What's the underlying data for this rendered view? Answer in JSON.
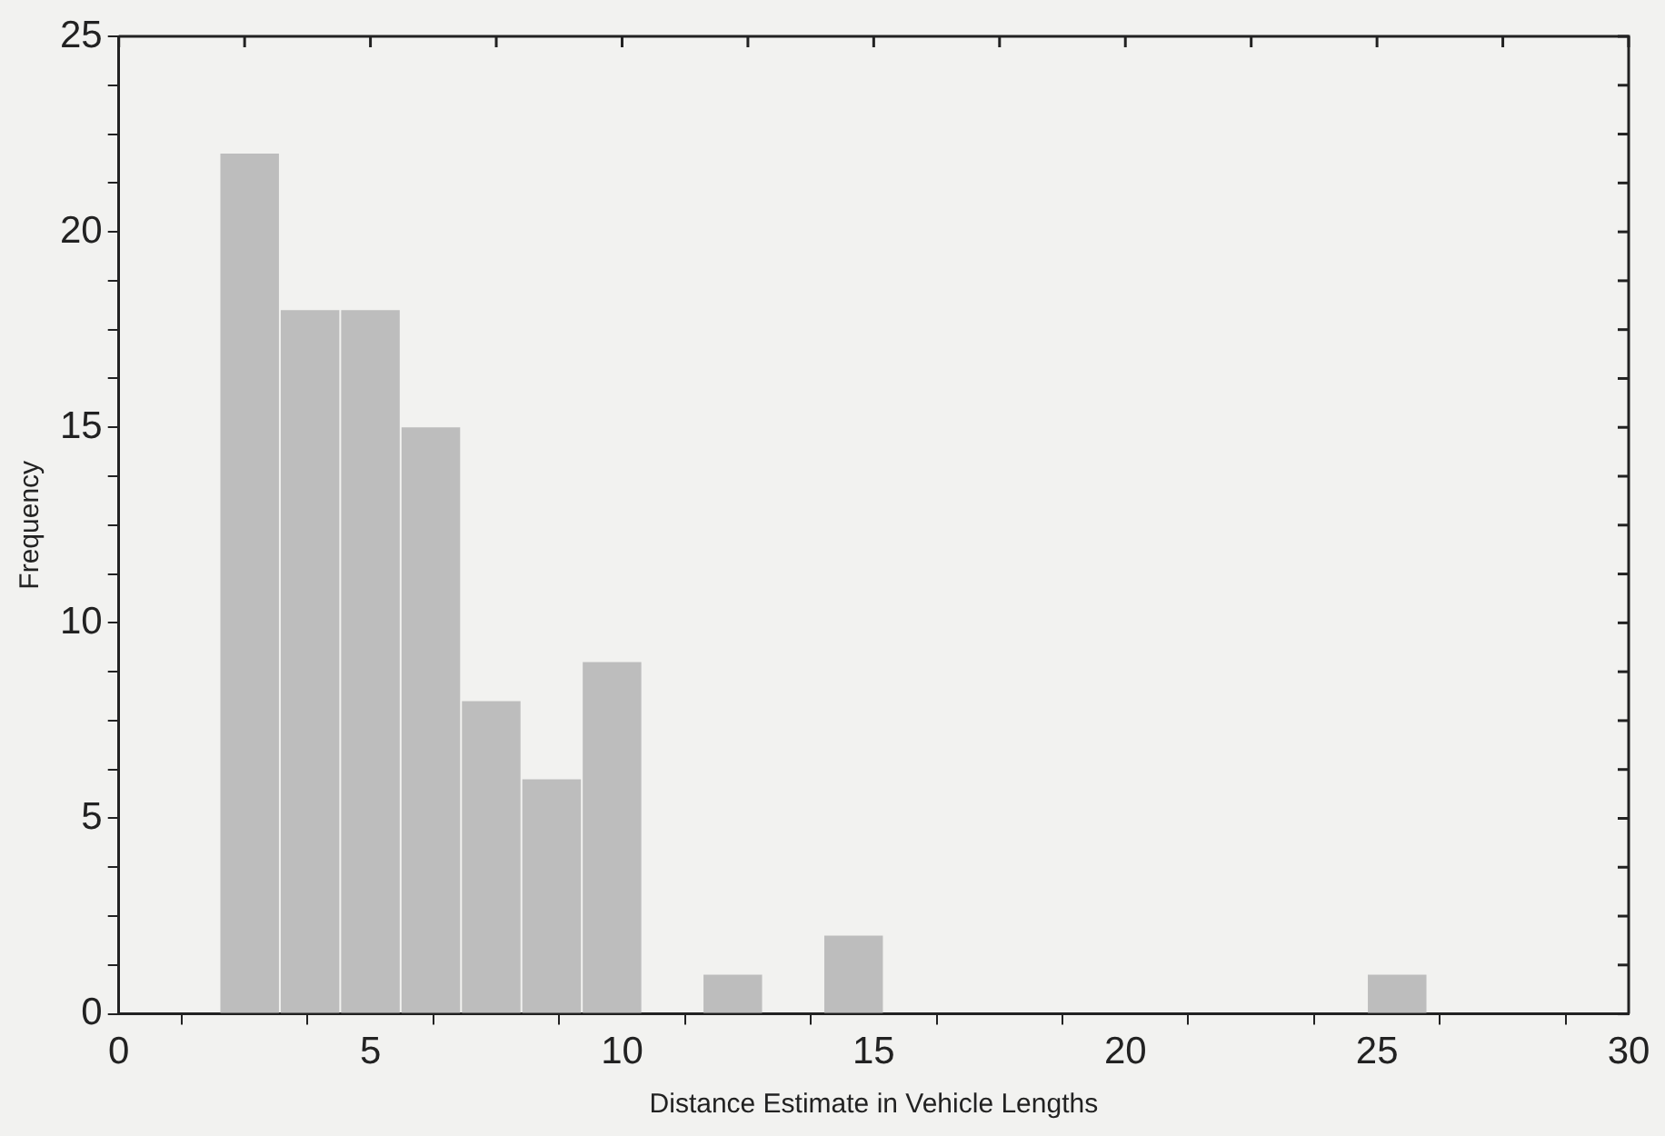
{
  "chart_data": {
    "type": "histogram",
    "xlabel": "Distance Estimate in Vehicle Lengths",
    "ylabel": "Frequency",
    "bins": [
      2,
      3.2,
      4.4,
      5.6,
      6.8,
      8,
      9.2,
      10.4,
      11.6,
      12.8,
      14,
      15.2,
      16.4,
      17.6,
      18.8,
      20,
      21.2,
      22.4,
      23.6,
      24.8,
      26
    ],
    "values": [
      22,
      18,
      18,
      15,
      8,
      6,
      9,
      0,
      1,
      0,
      2,
      0,
      0,
      0,
      0,
      0,
      0,
      0,
      0,
      1
    ],
    "color": "#bdbdbd",
    "xlim": [
      0,
      30
    ],
    "xticks": [
      0,
      {
        "value": 2.5,
        "label": null
      },
      5,
      {
        "value": 7.5,
        "label": null
      },
      10,
      {
        "value": 12.5,
        "label": null
      },
      15,
      {
        "value": 17.5,
        "label": null
      },
      20,
      {
        "value": 22.5,
        "label": null
      },
      25,
      {
        "value": 27.5,
        "label": null
      },
      30
    ],
    "ylim": [
      0,
      25
    ],
    "yticks": [
      0,
      {
        "value": 1.25,
        "label": null
      },
      {
        "value": 2.5,
        "label": null
      },
      {
        "value": 3.75,
        "label": null
      },
      5,
      {
        "value": 6.25,
        "label": null
      },
      {
        "value": 7.5,
        "label": null
      },
      {
        "value": 8.75,
        "label": null
      },
      10,
      {
        "value": 11.25,
        "label": null
      },
      {
        "value": 12.5,
        "label": null
      },
      {
        "value": 13.75,
        "label": null
      },
      15,
      {
        "value": 16.25,
        "label": null
      },
      {
        "value": 17.5,
        "label": null
      },
      {
        "value": 18.75,
        "label": null
      },
      20,
      {
        "value": 21.25,
        "label": null
      },
      {
        "value": 22.5,
        "label": null
      },
      {
        "value": 23.75,
        "label": null
      },
      25
    ],
    "grid": false,
    "legend": false
  }
}
